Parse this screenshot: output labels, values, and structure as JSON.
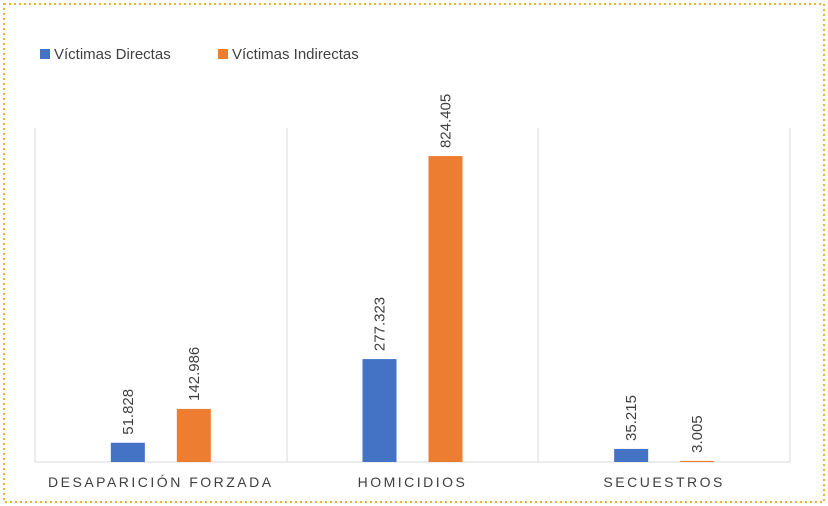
{
  "chart_data": {
    "type": "bar",
    "categories": [
      "DESAPARICIÓN FORZADA",
      "HOMICIDIOS",
      "SECUESTROS"
    ],
    "series": [
      {
        "name": "Víctimas Directas",
        "color": "#4472c4",
        "values": [
          51828,
          277323,
          35215
        ],
        "value_labels": [
          "51.828",
          "277.323",
          "35.215"
        ]
      },
      {
        "name": "Víctimas Indirectas",
        "color": "#ed7d31",
        "values": [
          142986,
          824405,
          3005
        ],
        "value_labels": [
          "142.986",
          "824.405",
          "3.005"
        ]
      }
    ],
    "ylim": [
      0,
      900000
    ],
    "legend": "top-left"
  }
}
